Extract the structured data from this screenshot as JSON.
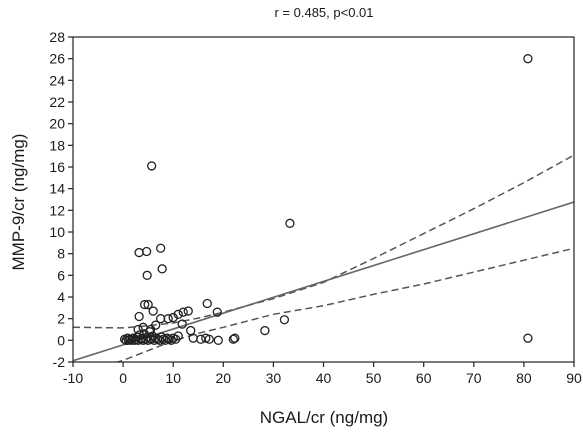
{
  "chart_data": {
    "type": "scatter",
    "title": "r =  0.485, p<0.01",
    "xlabel": "NGAL/cr (ng/mg)",
    "ylabel": "MMP-9/cr (ng/mg)",
    "xlim": [
      -10,
      90
    ],
    "ylim": [
      -2,
      28
    ],
    "xticks": [
      -10,
      0,
      10,
      20,
      30,
      40,
      50,
      60,
      70,
      80,
      90
    ],
    "yticks": [
      -2,
      0,
      2,
      4,
      6,
      8,
      10,
      12,
      14,
      16,
      18,
      20,
      22,
      24,
      26,
      28
    ],
    "grid": false,
    "legend": "none",
    "regression": {
      "intercept": -0.42,
      "slope": 0.1465
    },
    "confidence_band": {
      "x": [
        -10,
        0,
        5,
        10,
        15,
        20,
        30,
        40,
        50,
        60,
        70,
        80,
        90
      ],
      "upper": [
        1.2,
        1.15,
        1.35,
        1.6,
        2.05,
        2.6,
        3.85,
        5.35,
        7.55,
        9.85,
        12.15,
        14.55,
        17.1
      ],
      "lower": [
        -3.15,
        -1.85,
        -0.95,
        -0.05,
        0.65,
        1.2,
        2.4,
        3.2,
        4.25,
        5.2,
        6.3,
        7.4,
        8.5
      ]
    },
    "points": [
      {
        "x": 0.3,
        "y": 0.1
      },
      {
        "x": 0.6,
        "y": 0.0
      },
      {
        "x": 0.9,
        "y": 0.2
      },
      {
        "x": 1.1,
        "y": 0.0
      },
      {
        "x": 1.4,
        "y": 0.1
      },
      {
        "x": 1.7,
        "y": 0.0
      },
      {
        "x": 2.0,
        "y": 0.2
      },
      {
        "x": 2.3,
        "y": 0.0
      },
      {
        "x": 2.5,
        "y": 0.1
      },
      {
        "x": 2.8,
        "y": 0.3
      },
      {
        "x": 3.0,
        "y": 0.0
      },
      {
        "x": 3.3,
        "y": 0.5
      },
      {
        "x": 3.5,
        "y": 0.1
      },
      {
        "x": 3.8,
        "y": 0.2
      },
      {
        "x": 4.0,
        "y": 0.0
      },
      {
        "x": 4.2,
        "y": 0.6
      },
      {
        "x": 4.5,
        "y": 0.1
      },
      {
        "x": 4.8,
        "y": 0.3
      },
      {
        "x": 5.0,
        "y": 0.0
      },
      {
        "x": 5.3,
        "y": 0.8
      },
      {
        "x": 5.6,
        "y": 0.1
      },
      {
        "x": 5.9,
        "y": 0.4
      },
      {
        "x": 6.2,
        "y": 0.0
      },
      {
        "x": 6.5,
        "y": 0.2
      },
      {
        "x": 6.9,
        "y": 0.1
      },
      {
        "x": 7.3,
        "y": 0.0
      },
      {
        "x": 7.7,
        "y": 0.3
      },
      {
        "x": 8.0,
        "y": 0.1
      },
      {
        "x": 8.4,
        "y": 0.0
      },
      {
        "x": 8.8,
        "y": 0.2
      },
      {
        "x": 9.2,
        "y": 0.1
      },
      {
        "x": 9.6,
        "y": 0.0
      },
      {
        "x": 10.0,
        "y": 0.2
      },
      {
        "x": 10.5,
        "y": 0.1
      },
      {
        "x": 11.0,
        "y": 0.4
      },
      {
        "x": 3.0,
        "y": 1.0
      },
      {
        "x": 4.0,
        "y": 1.2
      },
      {
        "x": 5.5,
        "y": 1.0
      },
      {
        "x": 6.5,
        "y": 1.4
      },
      {
        "x": 3.2,
        "y": 2.2
      },
      {
        "x": 6.0,
        "y": 2.7
      },
      {
        "x": 7.5,
        "y": 2.0
      },
      {
        "x": 9.0,
        "y": 2.0
      },
      {
        "x": 10.0,
        "y": 2.1
      },
      {
        "x": 11.0,
        "y": 2.4
      },
      {
        "x": 12.0,
        "y": 2.6
      },
      {
        "x": 13.0,
        "y": 2.7
      },
      {
        "x": 11.8,
        "y": 1.5
      },
      {
        "x": 13.5,
        "y": 0.9
      },
      {
        "x": 14.0,
        "y": 0.2
      },
      {
        "x": 15.5,
        "y": 0.1
      },
      {
        "x": 16.5,
        "y": 0.2
      },
      {
        "x": 17.2,
        "y": 0.1
      },
      {
        "x": 19.0,
        "y": 0.0
      },
      {
        "x": 22.0,
        "y": 0.1
      },
      {
        "x": 22.3,
        "y": 0.2
      },
      {
        "x": 16.8,
        "y": 3.4
      },
      {
        "x": 18.8,
        "y": 2.6
      },
      {
        "x": 4.3,
        "y": 3.3
      },
      {
        "x": 5.0,
        "y": 3.3
      },
      {
        "x": 4.8,
        "y": 6.0
      },
      {
        "x": 7.8,
        "y": 6.6
      },
      {
        "x": 3.2,
        "y": 8.1
      },
      {
        "x": 4.7,
        "y": 8.2
      },
      {
        "x": 7.5,
        "y": 8.5
      },
      {
        "x": 5.7,
        "y": 16.1
      },
      {
        "x": 28.3,
        "y": 0.9
      },
      {
        "x": 32.2,
        "y": 1.9
      },
      {
        "x": 33.3,
        "y": 10.8
      },
      {
        "x": 80.8,
        "y": 26.0
      },
      {
        "x": 80.8,
        "y": 0.2
      }
    ]
  }
}
